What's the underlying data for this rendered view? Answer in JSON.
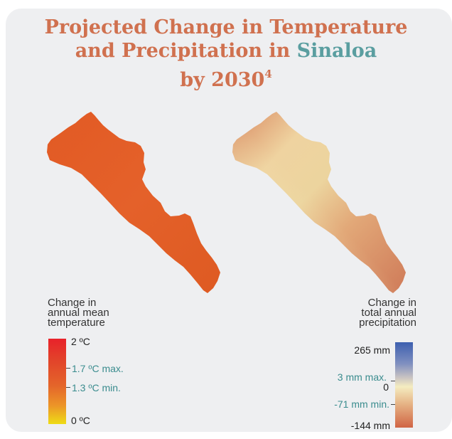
{
  "title": {
    "line1": "Projected Change in Temperature",
    "line2_prefix": "and Precipitation in ",
    "line2_highlight": "Sinaloa",
    "line3": "by 2030",
    "footnote": "4"
  },
  "colors": {
    "title": "#d0714f",
    "highlight": "#5a9ea0",
    "temp_map_fill": "#e05a23",
    "precip_low": "#cc4a36",
    "precip_mid": "#f3ecc0",
    "precip_high": "#3a5fae"
  },
  "temperature_legend": {
    "title_lines": [
      "Change in",
      "annual mean",
      "temperature"
    ],
    "max_label": "2 ºC",
    "region_max_label": "1.7 ºC max.",
    "region_min_label": "1.3 ºC min.",
    "min_label": "0 ºC",
    "scale": {
      "min": 0,
      "max": 2,
      "region_max": 1.7,
      "region_min": 1.3,
      "unit": "ºC"
    }
  },
  "precipitation_legend": {
    "title_lines": [
      "Change in",
      "total annual",
      "precipitation"
    ],
    "max_label": "265 mm",
    "region_max_label": "3 mm max.",
    "zero_label": "0",
    "region_min_label": "-71 mm min.",
    "min_label": "-144 mm",
    "scale": {
      "min": -144,
      "max": 265,
      "region_max": 3,
      "region_min": -71,
      "unit": "mm"
    }
  }
}
